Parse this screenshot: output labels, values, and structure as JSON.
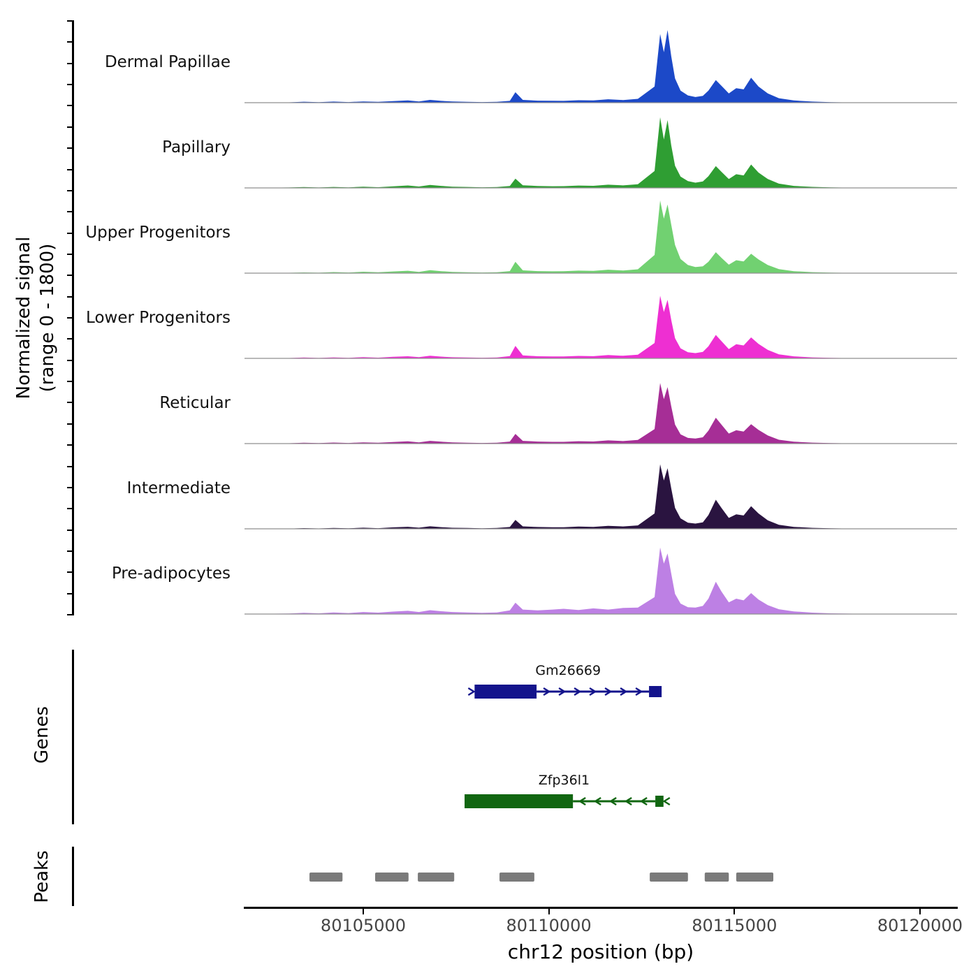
{
  "figure": {
    "y_axis_label_line1": "Normalized signal",
    "y_axis_label_line2": "(range 0 - 1800)",
    "genes_axis_label": "Genes",
    "peaks_axis_label": "Peaks",
    "x_axis_title": "chr12 position (bp)"
  },
  "chart_data": {
    "type": "area",
    "xlabel": "chr12 position (bp)",
    "ylabel": "Normalized signal (range 0 - 1800)",
    "x_range": [
      80101800,
      80121000
    ],
    "y_range": [
      0,
      1800
    ],
    "x_ticks": [
      80105000,
      80110000,
      80115000,
      80120000
    ],
    "x_tick_labels": [
      "80105000",
      "80110000",
      "80115000",
      "80120000"
    ],
    "baseline_color": "#8f8f8f",
    "positions": [
      80102000,
      80103000,
      80103400,
      80103800,
      80104200,
      80104600,
      80105000,
      80105400,
      80105800,
      80106200,
      80106500,
      80106800,
      80107100,
      80107400,
      80107800,
      80108200,
      80108600,
      80108950,
      80109100,
      80109300,
      80109700,
      80110100,
      80110400,
      80110800,
      80111200,
      80111600,
      80112000,
      80112400,
      80112850,
      80113000,
      80113100,
      80113200,
      80113300,
      80113400,
      80113550,
      80113750,
      80113950,
      80114150,
      80114300,
      80114500,
      80114650,
      80114850,
      80115050,
      80115250,
      80115450,
      80115650,
      80115900,
      80116200,
      80116600,
      80117100,
      80117600,
      80118200,
      80119000,
      80121000
    ],
    "series": [
      {
        "name": "Dermal Papillae",
        "color": "#1c49c8",
        "values": [
          2,
          8,
          25,
          12,
          28,
          15,
          32,
          20,
          38,
          55,
          30,
          70,
          45,
          30,
          22,
          15,
          20,
          45,
          260,
          70,
          50,
          48,
          45,
          60,
          55,
          85,
          65,
          95,
          400,
          1700,
          1250,
          1800,
          1150,
          600,
          300,
          180,
          140,
          170,
          300,
          560,
          420,
          230,
          360,
          330,
          620,
          400,
          230,
          110,
          55,
          28,
          14,
          6,
          2,
          0
        ]
      },
      {
        "name": "Papillary",
        "color": "#2f9e33",
        "values": [
          2,
          10,
          20,
          10,
          25,
          14,
          30,
          18,
          40,
          60,
          35,
          75,
          50,
          32,
          24,
          16,
          22,
          48,
          230,
          65,
          48,
          42,
          44,
          58,
          52,
          80,
          62,
          90,
          420,
          1750,
          1200,
          1680,
          1050,
          550,
          280,
          170,
          130,
          160,
          290,
          540,
          400,
          220,
          340,
          310,
          580,
          380,
          220,
          105,
          50,
          26,
          12,
          5,
          2,
          0
        ]
      },
      {
        "name": "Upper Progenitors",
        "color": "#71d171",
        "values": [
          2,
          8,
          18,
          10,
          26,
          15,
          34,
          20,
          42,
          58,
          32,
          72,
          48,
          30,
          22,
          15,
          20,
          50,
          280,
          70,
          50,
          45,
          46,
          62,
          55,
          85,
          65,
          95,
          450,
          1800,
          1350,
          1700,
          1200,
          700,
          350,
          200,
          150,
          170,
          280,
          520,
          380,
          210,
          320,
          290,
          480,
          340,
          200,
          100,
          48,
          24,
          12,
          5,
          2,
          0
        ]
      },
      {
        "name": "Lower Progenitors",
        "color": "#ee2fd2",
        "values": [
          2,
          8,
          20,
          10,
          24,
          14,
          30,
          18,
          38,
          52,
          30,
          66,
          44,
          28,
          22,
          15,
          22,
          55,
          310,
          75,
          52,
          46,
          46,
          60,
          54,
          82,
          64,
          92,
          380,
          1550,
          1150,
          1450,
          950,
          500,
          250,
          150,
          130,
          160,
          300,
          580,
          430,
          230,
          350,
          320,
          520,
          360,
          210,
          100,
          50,
          25,
          12,
          5,
          2,
          0
        ]
      },
      {
        "name": "Reticular",
        "color": "#a62e96",
        "values": [
          2,
          8,
          22,
          12,
          26,
          15,
          32,
          20,
          40,
          55,
          32,
          68,
          46,
          30,
          22,
          16,
          22,
          50,
          240,
          68,
          50,
          44,
          44,
          58,
          52,
          80,
          62,
          90,
          360,
          1500,
          1100,
          1400,
          920,
          470,
          230,
          140,
          125,
          155,
          320,
          640,
          470,
          250,
          330,
          300,
          480,
          340,
          200,
          95,
          46,
          24,
          12,
          5,
          2,
          0
        ]
      },
      {
        "name": "Intermediate",
        "color": "#2a1440",
        "values": [
          1,
          6,
          18,
          9,
          22,
          12,
          28,
          16,
          36,
          50,
          28,
          62,
          42,
          26,
          20,
          14,
          20,
          45,
          220,
          60,
          45,
          40,
          40,
          55,
          48,
          75,
          58,
          85,
          380,
          1600,
          1200,
          1500,
          1000,
          520,
          260,
          150,
          130,
          160,
          340,
          720,
          520,
          270,
          360,
          330,
          560,
          380,
          210,
          100,
          48,
          24,
          12,
          5,
          2,
          0
        ]
      },
      {
        "name": "Pre-adipocytes",
        "color": "#bd80e4",
        "values": [
          3,
          12,
          30,
          18,
          40,
          25,
          50,
          35,
          60,
          80,
          50,
          95,
          70,
          50,
          40,
          30,
          40,
          90,
          280,
          110,
          90,
          110,
          130,
          100,
          140,
          110,
          150,
          160,
          420,
          1650,
          1250,
          1500,
          1000,
          500,
          260,
          170,
          160,
          200,
          380,
          800,
          560,
          290,
          380,
          340,
          520,
          360,
          220,
          120,
          65,
          35,
          18,
          8,
          3,
          0
        ]
      }
    ],
    "genes": [
      {
        "name": "Gm26669",
        "color": "#14148c",
        "strand": "+",
        "exon": [
          80108000,
          80109670
        ],
        "intron": [
          80109670,
          80112700
        ],
        "end_box": [
          80112700,
          80113040
        ]
      },
      {
        "name": "Zfp36l1",
        "color": "#116611",
        "strand": "-",
        "exon": [
          80107730,
          80110650
        ],
        "intron": [
          80110650,
          80112870
        ],
        "end_box": [
          80112870,
          80113090
        ]
      }
    ],
    "peaks": {
      "color": "#7a7a7a",
      "regions": [
        [
          80103550,
          80104440
        ],
        [
          80105320,
          80106220
        ],
        [
          80106470,
          80107450
        ],
        [
          80108670,
          80109610
        ],
        [
          80112720,
          80113750
        ],
        [
          80114200,
          80114850
        ],
        [
          80115050,
          80116050
        ]
      ]
    }
  }
}
